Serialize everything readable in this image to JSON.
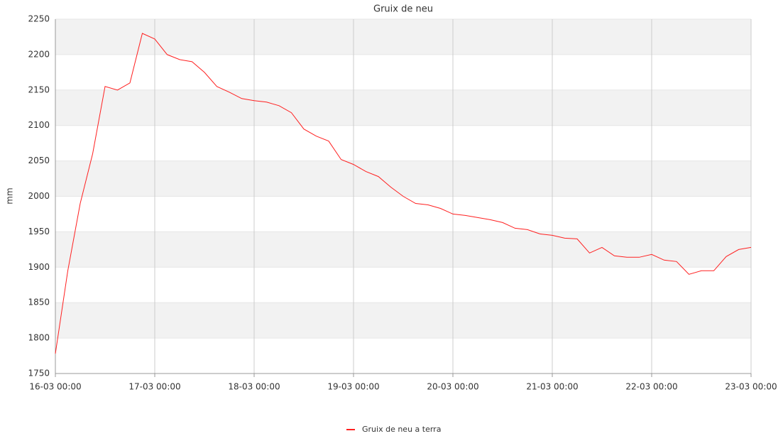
{
  "chart_data": {
    "type": "line",
    "title": "Gruix de neu",
    "y_label": "mm",
    "x": [
      "16-03 00:00",
      "16-03 03:00",
      "16-03 06:00",
      "16-03 09:00",
      "16-03 12:00",
      "16-03 15:00",
      "16-03 18:00",
      "16-03 21:00",
      "17-03 00:00",
      "17-03 03:00",
      "17-03 06:00",
      "17-03 09:00",
      "17-03 12:00",
      "17-03 15:00",
      "17-03 18:00",
      "17-03 21:00",
      "18-03 00:00",
      "18-03 03:00",
      "18-03 06:00",
      "18-03 09:00",
      "18-03 12:00",
      "18-03 15:00",
      "18-03 18:00",
      "18-03 21:00",
      "19-03 00:00",
      "19-03 03:00",
      "19-03 06:00",
      "19-03 09:00",
      "19-03 12:00",
      "19-03 15:00",
      "19-03 18:00",
      "19-03 21:00",
      "20-03 00:00",
      "20-03 03:00",
      "20-03 06:00",
      "20-03 09:00",
      "20-03 12:00",
      "20-03 15:00",
      "20-03 18:00",
      "20-03 21:00",
      "21-03 00:00",
      "21-03 03:00",
      "21-03 06:00",
      "21-03 09:00",
      "21-03 12:00",
      "21-03 15:00",
      "21-03 18:00",
      "21-03 21:00",
      "22-03 00:00",
      "22-03 03:00",
      "22-03 06:00",
      "22-03 09:00",
      "22-03 12:00",
      "22-03 15:00",
      "22-03 18:00",
      "22-03 21:00",
      "23-03 00:00"
    ],
    "series": [
      {
        "name": "Gruix de neu a terra",
        "color": "#ff2020",
        "values": [
          1778,
          1895,
          1990,
          2060,
          2155,
          2150,
          2160,
          2230,
          2222,
          2200,
          2193,
          2190,
          2175,
          2155,
          2147,
          2138,
          2135,
          2133,
          2128,
          2118,
          2095,
          2085,
          2078,
          2052,
          2045,
          2035,
          2028,
          2013,
          2000,
          1990,
          1988,
          1983,
          1975,
          1973,
          1970,
          1967,
          1963,
          1955,
          1953,
          1947,
          1945,
          1941,
          1940,
          1920,
          1928,
          1916,
          1914,
          1914,
          1918,
          1910,
          1908,
          1890,
          1895,
          1895,
          1915,
          1925,
          1928
        ]
      }
    ],
    "xlim": [
      "16-03 00:00",
      "23-03 00:00"
    ],
    "xticks": [
      "16-03 00:00",
      "17-03 00:00",
      "18-03 00:00",
      "19-03 00:00",
      "20-03 00:00",
      "21-03 00:00",
      "22-03 00:00",
      "23-03 00:00"
    ],
    "ylim": [
      1750,
      2250
    ],
    "yticks": [
      1750,
      1800,
      1850,
      1900,
      1950,
      2000,
      2050,
      2100,
      2150,
      2200,
      2250
    ],
    "grid": true,
    "legend": "bottom"
  }
}
